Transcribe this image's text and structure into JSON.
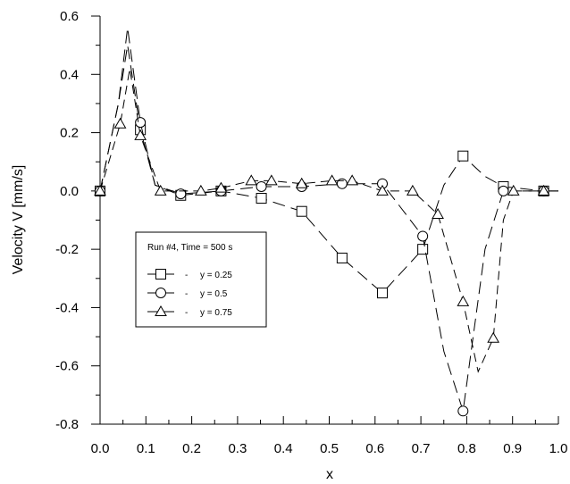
{
  "chart_data": {
    "type": "line",
    "xlabel": "x",
    "ylabel": "Velocity V  [mm/s]",
    "xlim": [
      0.0,
      1.0
    ],
    "ylim": [
      -0.8,
      0.6
    ],
    "xticks": [
      "0.0",
      "0.1",
      "0.2",
      "0.3",
      "0.4",
      "0.5",
      "0.6",
      "0.7",
      "0.8",
      "0.9",
      "1.0"
    ],
    "yticks": [
      "0.6",
      "0.4",
      "0.2",
      "0.0",
      "-0.2",
      "-0.4",
      "-0.6",
      "-0.8"
    ],
    "grid": false,
    "legend": {
      "title": "Run #4, Time = 500 s",
      "placement": "center-left"
    },
    "series": [
      {
        "name": "y = 0.25",
        "marker": "square",
        "x": [
          0.0,
          0.04,
          0.06,
          0.088,
          0.12,
          0.176,
          0.264,
          0.352,
          0.44,
          0.528,
          0.616,
          0.704,
          0.75,
          0.792,
          0.84,
          0.88,
          0.968,
          1.0
        ],
        "y": [
          0.0,
          0.3,
          0.5,
          0.21,
          0.02,
          -0.015,
          0.0,
          -0.025,
          -0.07,
          -0.23,
          -0.35,
          -0.2,
          0.02,
          0.12,
          0.05,
          0.015,
          0.0,
          0.0
        ],
        "markers_x": [
          0.0,
          0.088,
          0.176,
          0.264,
          0.352,
          0.44,
          0.528,
          0.616,
          0.704,
          0.792,
          0.88,
          0.968
        ],
        "markers_y": [
          0.0,
          0.21,
          -0.015,
          0.0,
          -0.025,
          -0.07,
          -0.23,
          -0.35,
          -0.2,
          0.12,
          0.015,
          0.0
        ]
      },
      {
        "name": "y = 0.5",
        "marker": "circle",
        "x": [
          0.0,
          0.04,
          0.06,
          0.088,
          0.12,
          0.176,
          0.264,
          0.352,
          0.44,
          0.528,
          0.616,
          0.704,
          0.75,
          0.792,
          0.84,
          0.88,
          0.968,
          1.0
        ],
        "y": [
          0.0,
          0.3,
          0.56,
          0.235,
          0.02,
          -0.01,
          0.0,
          0.015,
          0.015,
          0.025,
          0.025,
          -0.155,
          -0.55,
          -0.755,
          -0.2,
          0.0,
          0.0,
          0.0
        ],
        "markers_x": [
          0.0,
          0.088,
          0.176,
          0.264,
          0.352,
          0.44,
          0.528,
          0.616,
          0.704,
          0.792,
          0.88,
          0.968
        ],
        "markers_y": [
          0.0,
          0.235,
          -0.01,
          0.0,
          0.015,
          0.015,
          0.025,
          0.025,
          -0.155,
          -0.755,
          0.0,
          0.0
        ]
      },
      {
        "name": "y = 0.75",
        "marker": "triangle",
        "x": [
          0.0,
          0.044,
          0.065,
          0.088,
          0.132,
          0.22,
          0.264,
          0.33,
          0.374,
          0.44,
          0.506,
          0.55,
          0.616,
          0.682,
          0.737,
          0.792,
          0.825,
          0.858,
          0.88,
          0.902,
          0.968,
          1.0
        ],
        "y": [
          0.0,
          0.23,
          0.42,
          0.19,
          0.0,
          0.0,
          0.01,
          0.035,
          0.035,
          0.025,
          0.035,
          0.035,
          0.0,
          0.0,
          -0.08,
          -0.38,
          -0.62,
          -0.505,
          -0.1,
          0.0,
          0.0,
          0.0
        ],
        "markers_x": [
          0.0,
          0.044,
          0.088,
          0.132,
          0.22,
          0.264,
          0.33,
          0.374,
          0.44,
          0.506,
          0.55,
          0.616,
          0.682,
          0.737,
          0.792,
          0.858,
          0.902,
          0.968
        ],
        "markers_y": [
          0.0,
          0.23,
          0.19,
          0.0,
          0.0,
          0.01,
          0.035,
          0.035,
          0.025,
          0.035,
          0.035,
          0.0,
          0.0,
          -0.08,
          -0.38,
          -0.505,
          0.0,
          0.0
        ]
      }
    ]
  }
}
